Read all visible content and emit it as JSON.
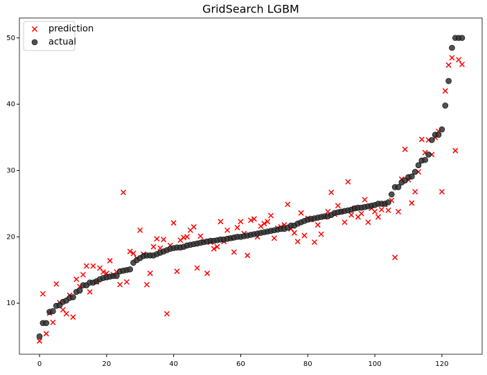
{
  "chart_data": {
    "type": "scatter",
    "title": "GridSearch LGBM",
    "x": [
      0,
      1,
      2,
      3,
      4,
      5,
      6,
      7,
      8,
      9,
      10,
      11,
      12,
      13,
      14,
      15,
      16,
      17,
      18,
      19,
      20,
      21,
      22,
      23,
      24,
      25,
      26,
      27,
      28,
      29,
      30,
      31,
      32,
      33,
      34,
      35,
      36,
      37,
      38,
      39,
      40,
      41,
      42,
      43,
      44,
      45,
      46,
      47,
      48,
      49,
      50,
      51,
      52,
      53,
      54,
      55,
      56,
      57,
      58,
      59,
      60,
      61,
      62,
      63,
      64,
      65,
      66,
      67,
      68,
      69,
      70,
      71,
      72,
      73,
      74,
      75,
      76,
      77,
      78,
      79,
      80,
      81,
      82,
      83,
      84,
      85,
      86,
      87,
      88,
      89,
      90,
      91,
      92,
      93,
      94,
      95,
      96,
      97,
      98,
      99,
      100,
      101,
      102,
      103,
      104,
      105,
      106,
      107,
      108,
      109,
      110,
      111,
      112,
      113,
      114,
      115,
      116,
      117,
      118,
      119,
      120,
      121,
      122,
      123,
      124,
      125,
      126
    ],
    "series": [
      {
        "name": "prediction",
        "color": "#ff0000",
        "marker": "x",
        "values": [
          4.3,
          11.4,
          5.4,
          8.5,
          7.1,
          12.9,
          10.1,
          9.0,
          8.4,
          11.2,
          7.9,
          13.6,
          12.5,
          14.3,
          15.6,
          11.7,
          15.6,
          13.2,
          15.3,
          14.7,
          14.5,
          16.4,
          14.3,
          14.7,
          12.8,
          26.7,
          13.2,
          17.8,
          17.5,
          16.8,
          21.0,
          17.4,
          12.8,
          14.5,
          18.5,
          19.7,
          18.3,
          19.6,
          8.4,
          18.7,
          22.1,
          14.8,
          19.5,
          19.9,
          20.0,
          21.0,
          21.5,
          15.3,
          20.1,
          19.3,
          14.5,
          19.2,
          18.2,
          18.5,
          22.3,
          19.3,
          21.0,
          19.8,
          17.7,
          21.4,
          22.3,
          20.5,
          17.2,
          22.5,
          22.7,
          20.0,
          21.6,
          22.0,
          22.3,
          23.2,
          19.8,
          21.3,
          21.5,
          21.8,
          24.9,
          21.2,
          20.6,
          19.3,
          23.6,
          20.2,
          22.8,
          22.6,
          19.2,
          21.8,
          20.4,
          23.0,
          23.8,
          26.7,
          23.4,
          24.7,
          23.8,
          22.2,
          28.3,
          23.3,
          24.3,
          23.0,
          23.5,
          25.6,
          22.2,
          24.3,
          23.8,
          23.0,
          24.1,
          24.9,
          24.0,
          25.5,
          16.9,
          23.8,
          28.7,
          33.2,
          28.6,
          25.1,
          26.8,
          29.8,
          34.7,
          32.7,
          34.6,
          32.4,
          35.0,
          35.9,
          26.8,
          42.0,
          45.9,
          47.0,
          33.0,
          46.7,
          46.0
        ]
      },
      {
        "name": "actual",
        "color": "#333333",
        "marker": "o",
        "values": [
          5.0,
          7.0,
          7.0,
          8.7,
          8.8,
          9.6,
          9.7,
          10.2,
          10.4,
          10.8,
          10.9,
          11.7,
          11.9,
          12.7,
          12.7,
          13.1,
          13.1,
          13.3,
          13.6,
          13.8,
          13.9,
          14.0,
          14.1,
          14.1,
          14.8,
          14.9,
          15.0,
          15.1,
          16.1,
          16.5,
          16.8,
          17.1,
          17.2,
          17.2,
          17.2,
          17.4,
          17.6,
          17.8,
          18.0,
          18.2,
          18.3,
          18.4,
          18.4,
          18.5,
          18.7,
          18.8,
          18.9,
          19.0,
          19.1,
          19.2,
          19.3,
          19.4,
          19.4,
          19.5,
          19.6,
          19.6,
          19.7,
          19.8,
          19.9,
          20.0,
          20.0,
          20.1,
          20.2,
          20.3,
          20.4,
          20.5,
          20.6,
          20.7,
          20.8,
          20.9,
          21.0,
          21.1,
          21.2,
          21.2,
          21.4,
          21.7,
          21.7,
          22.0,
          22.2,
          22.4,
          22.6,
          22.7,
          22.8,
          22.9,
          23.0,
          23.1,
          23.1,
          23.3,
          23.6,
          23.7,
          23.8,
          23.9,
          24.0,
          24.1,
          24.3,
          24.4,
          24.4,
          24.5,
          24.6,
          24.7,
          24.8,
          25.0,
          25.0,
          25.0,
          25.2,
          26.4,
          27.5,
          27.5,
          28.2,
          28.5,
          29.0,
          29.1,
          29.8,
          30.8,
          31.5,
          31.6,
          32.4,
          34.6,
          35.4,
          35.4,
          36.2,
          39.8,
          43.5,
          48.5,
          50,
          50,
          50
        ]
      }
    ],
    "xlim": [
      -6,
      132
    ],
    "ylim": [
      2.3,
      53
    ],
    "xticks": [
      0,
      20,
      40,
      60,
      80,
      100,
      120
    ],
    "yticks": [
      10,
      20,
      30,
      40,
      50
    ],
    "legend": "upper left"
  }
}
